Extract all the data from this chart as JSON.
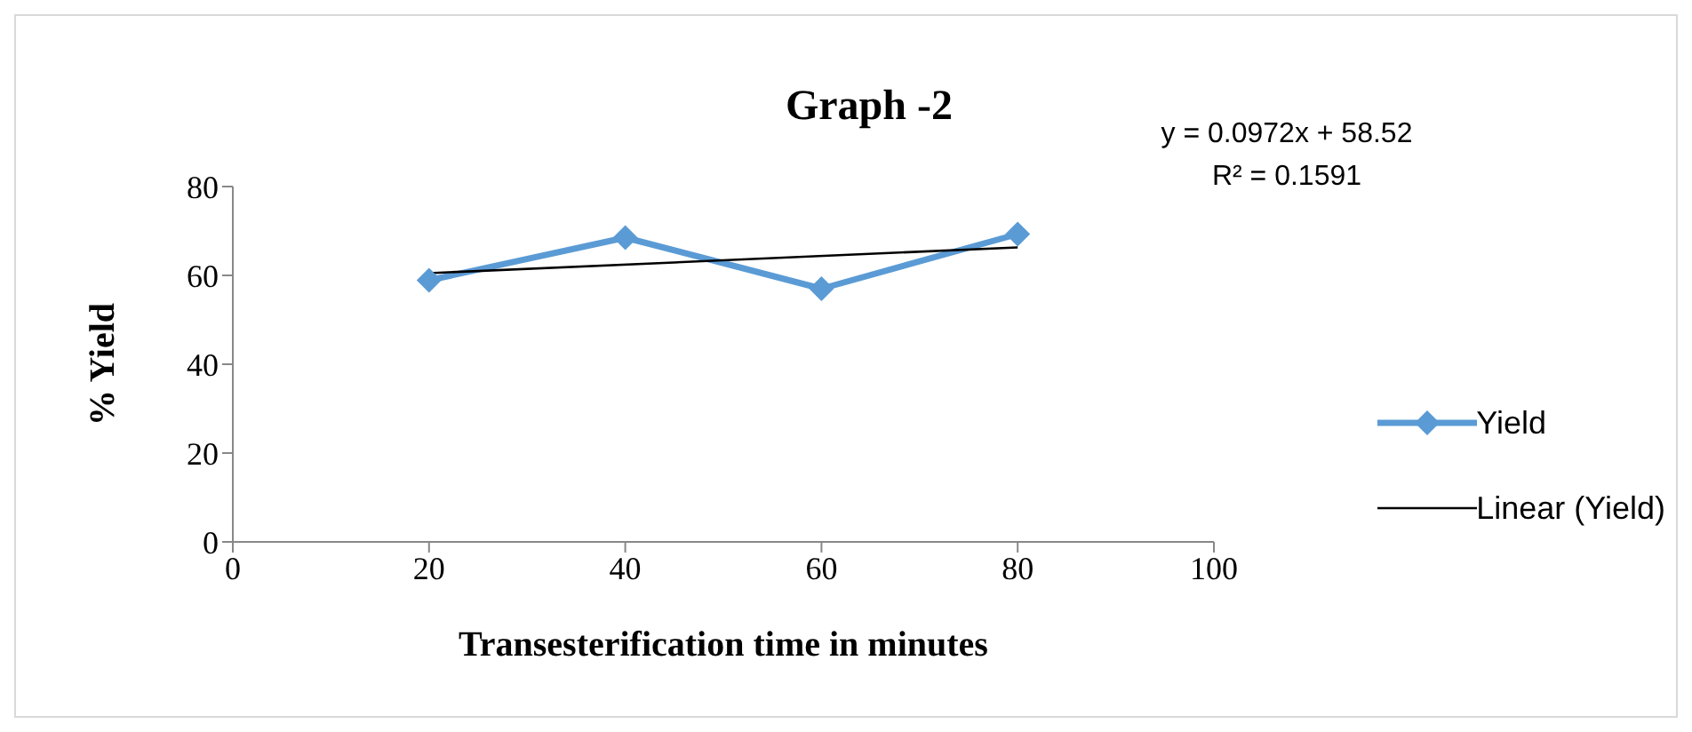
{
  "chart_data": {
    "type": "line",
    "title": "Graph -2",
    "xlabel": "Transesterification time in minutes",
    "ylabel": "% Yield",
    "x": [
      20,
      40,
      60,
      80
    ],
    "series": [
      {
        "name": "Yield",
        "color": "#5b9bd5",
        "values": [
          58.9,
          68.5,
          57.0,
          69.3
        ],
        "marker": "diamond"
      },
      {
        "name": "Linear (Yield)",
        "type": "line",
        "color": "#000000",
        "x": [
          20,
          80
        ],
        "values": [
          60.5,
          66.3
        ],
        "marker": "none"
      }
    ],
    "annotations": [
      "y = 0.0972x + 58.52",
      "R² = 0.1591"
    ],
    "xlim": [
      0,
      100
    ],
    "xticks": [
      0,
      20,
      40,
      60,
      80,
      100
    ],
    "ylim": [
      0,
      80
    ],
    "yticks": [
      0,
      20,
      40,
      60,
      80
    ],
    "legend": "right",
    "grid": false
  }
}
